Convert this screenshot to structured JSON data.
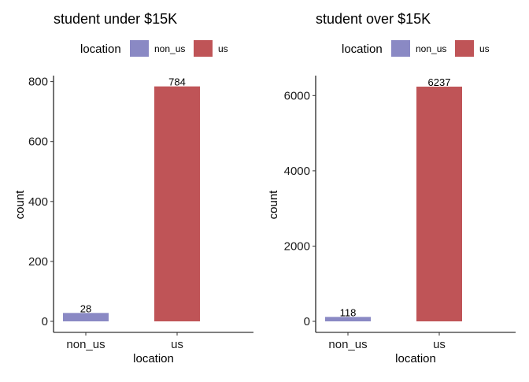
{
  "colors": {
    "non_us": "#8a89c4",
    "us": "#bf5457"
  },
  "chart_data": [
    {
      "type": "bar",
      "title": "student under $15K",
      "xlabel": "location",
      "ylabel": "count",
      "legend_title": "location",
      "legend_position": "top",
      "legend_entries": [
        "non_us",
        "us"
      ],
      "categories": [
        "non_us",
        "us"
      ],
      "values": [
        28,
        784
      ],
      "value_labels": [
        "28",
        "784"
      ],
      "ylim": [
        0,
        820
      ],
      "yticks": [
        0,
        200,
        400,
        600,
        800
      ],
      "ytick_labels": [
        "0",
        "200",
        "400",
        "600",
        "800"
      ],
      "grid": false
    },
    {
      "type": "bar",
      "title": "student over $15K",
      "xlabel": "location",
      "ylabel": "count",
      "legend_title": "location",
      "legend_position": "top",
      "legend_entries": [
        "non_us",
        "us"
      ],
      "categories": [
        "non_us",
        "us"
      ],
      "values": [
        118,
        6237
      ],
      "value_labels": [
        "118",
        "6237"
      ],
      "ylim": [
        0,
        6530
      ],
      "yticks": [
        0,
        2000,
        4000,
        6000
      ],
      "ytick_labels": [
        "0",
        "2000",
        "4000",
        "6000"
      ],
      "grid": false
    }
  ]
}
